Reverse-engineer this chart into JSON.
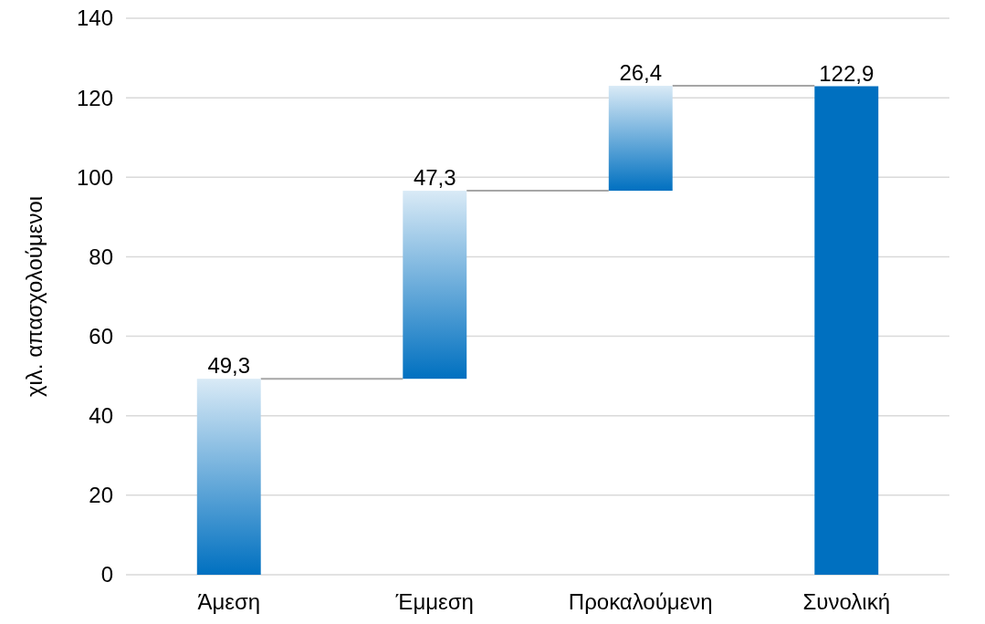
{
  "chart_data": {
    "type": "bar",
    "ylabel": "χιλ. απασχολούμενοι",
    "categories": [
      "Άμεση",
      "Έμμεση",
      "Προκαλούμενη",
      "Συνολική"
    ],
    "values": [
      49.3,
      47.3,
      26.4,
      122.9
    ],
    "base": [
      0,
      49.3,
      96.6,
      0
    ],
    "value_labels": [
      "49,3",
      "47,3",
      "26,4",
      "122,9"
    ],
    "colors": [
      "#0070c0",
      "#0070c0",
      "#0070c0",
      "#0070c0"
    ],
    "ylim": [
      0,
      140
    ],
    "yticks": [
      0,
      20,
      40,
      60,
      80,
      100,
      120,
      140
    ],
    "grid": "y"
  }
}
